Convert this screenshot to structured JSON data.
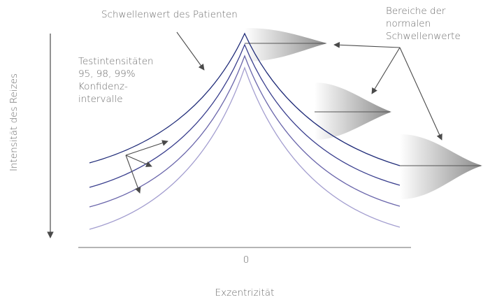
{
  "labels": {
    "patient_threshold": "Schwellenwert des Patienten",
    "normal_ranges": [
      "Bereiche der",
      "normalen",
      "Schwellenwerte"
    ],
    "test_intensities": [
      "Testintensitäten",
      "95, 98, 99%",
      "Konfidenz-",
      "intervalle"
    ],
    "y_axis": "Intensität des Reizes",
    "x_origin": "0",
    "x_axis": "Exzentrizität"
  }
}
